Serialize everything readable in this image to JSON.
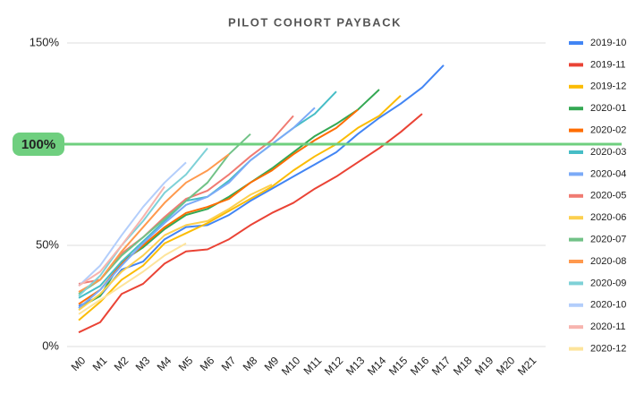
{
  "chart_data": {
    "type": "line",
    "title": "PILOT COHORT PAYBACK",
    "categories": [
      "M0",
      "M1",
      "M2",
      "M3",
      "M4",
      "M5",
      "M6",
      "M7",
      "M8",
      "M9",
      "M10",
      "M11",
      "M12",
      "M13",
      "M14",
      "M15",
      "M16",
      "M17",
      "M18",
      "M19",
      "M20",
      "M21"
    ],
    "ylim": [
      0,
      150
    ],
    "yticks": [
      {
        "value": 0,
        "label": "0%"
      },
      {
        "value": 50,
        "label": "50%"
      },
      {
        "value": 100,
        "label": "100%"
      },
      {
        "value": 150,
        "label": "150%"
      }
    ],
    "grid": true,
    "reference_line": 100,
    "reference_color": "#6fcf7f",
    "legend": "right",
    "series": [
      {
        "name": "2019-10",
        "color": "#4285f4",
        "values": [
          20,
          25,
          38,
          42,
          53,
          59,
          60,
          65,
          72,
          78,
          84,
          90,
          96,
          105,
          113,
          120,
          128,
          139,
          null,
          null,
          null,
          null
        ]
      },
      {
        "name": "2019-11",
        "color": "#ea4335",
        "values": [
          7,
          12,
          26,
          31,
          41,
          47,
          48,
          53,
          60,
          66,
          71,
          78,
          84,
          91,
          98,
          106,
          115,
          null,
          null,
          null,
          null,
          null
        ]
      },
      {
        "name": "2019-12",
        "color": "#fbbc04",
        "values": [
          13,
          22,
          33,
          40,
          51,
          56,
          61,
          67,
          73,
          79,
          87,
          94,
          100,
          108,
          114,
          124,
          null,
          null,
          null,
          null,
          null,
          null
        ]
      },
      {
        "name": "2020-01",
        "color": "#34a853",
        "values": [
          19,
          25,
          42,
          49,
          58,
          65,
          68,
          74,
          81,
          88,
          96,
          104,
          110,
          117,
          127,
          null,
          null,
          null,
          null,
          null,
          null,
          null
        ]
      },
      {
        "name": "2020-02",
        "color": "#ff6d01",
        "values": [
          21,
          28,
          41,
          50,
          59,
          66,
          69,
          73,
          81,
          87,
          95,
          102,
          108,
          117,
          null,
          null,
          null,
          null,
          null,
          null,
          null,
          null
        ]
      },
      {
        "name": "2020-03",
        "color": "#46bdc6",
        "values": [
          24,
          30,
          42,
          52,
          62,
          72,
          74,
          82,
          92,
          100,
          108,
          115,
          126,
          null,
          null,
          null,
          null,
          null,
          null,
          null,
          null,
          null
        ]
      },
      {
        "name": "2020-04",
        "color": "#7baaf7",
        "values": [
          19,
          28,
          40,
          51,
          61,
          70,
          74,
          81,
          92,
          100,
          108,
          118,
          null,
          null,
          null,
          null,
          null,
          null,
          null,
          null,
          null,
          null
        ]
      },
      {
        "name": "2020-05",
        "color": "#f07b72",
        "values": [
          31,
          33,
          46,
          54,
          64,
          73,
          77,
          85,
          94,
          102,
          114,
          null,
          null,
          null,
          null,
          null,
          null,
          null,
          null,
          null,
          null,
          null
        ]
      },
      {
        "name": "2020-06",
        "color": "#fcd04f",
        "values": [
          18,
          26,
          37,
          45,
          55,
          60,
          62,
          68,
          75,
          80,
          null,
          null,
          null,
          null,
          null,
          null,
          null,
          null,
          null,
          null,
          null,
          null
        ]
      },
      {
        "name": "2020-07",
        "color": "#71c287",
        "values": [
          26,
          33,
          45,
          54,
          63,
          72,
          81,
          95,
          105,
          null,
          null,
          null,
          null,
          null,
          null,
          null,
          null,
          null,
          null,
          null,
          null,
          null
        ]
      },
      {
        "name": "2020-08",
        "color": "#ff994d",
        "values": [
          27,
          33,
          47,
          59,
          71,
          81,
          87,
          95,
          null,
          null,
          null,
          null,
          null,
          null,
          null,
          null,
          null,
          null,
          null,
          null,
          null,
          null
        ]
      },
      {
        "name": "2020-09",
        "color": "#7ed1d7",
        "values": [
          25,
          35,
          50,
          62,
          76,
          85,
          98,
          null,
          null,
          null,
          null,
          null,
          null,
          null,
          null,
          null,
          null,
          null,
          null,
          null,
          null,
          null
        ]
      },
      {
        "name": "2020-10",
        "color": "#b3cefb",
        "values": [
          30,
          40,
          55,
          69,
          81,
          91,
          null,
          null,
          null,
          null,
          null,
          null,
          null,
          null,
          null,
          null,
          null,
          null,
          null,
          null,
          null,
          null
        ]
      },
      {
        "name": "2020-11",
        "color": "#f7b4ae",
        "values": [
          30,
          37,
          50,
          64,
          79,
          null,
          null,
          null,
          null,
          null,
          null,
          null,
          null,
          null,
          null,
          null,
          null,
          null,
          null,
          null,
          null,
          null
        ]
      },
      {
        "name": "2020-12",
        "color": "#fde49b",
        "values": [
          16,
          23,
          30,
          37,
          45,
          51,
          null,
          null,
          null,
          null,
          null,
          null,
          null,
          null,
          null,
          null,
          null,
          null,
          null,
          null,
          null,
          null
        ]
      }
    ]
  }
}
